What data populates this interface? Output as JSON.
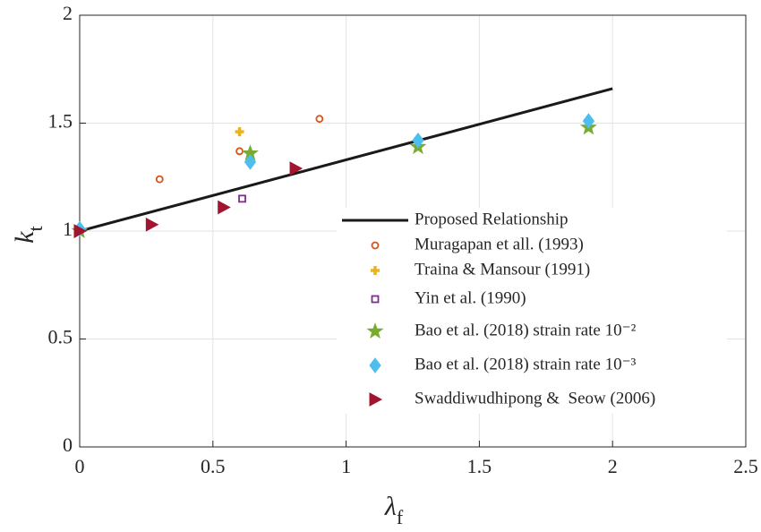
{
  "chart_data": {
    "type": "scatter",
    "xlabel": {
      "text": "λ",
      "sub": "f"
    },
    "ylabel": {
      "text": "k",
      "sub": "t"
    },
    "xlim": [
      0,
      2.5
    ],
    "ylim": [
      0,
      2
    ],
    "xticks": [
      0,
      0.5,
      1,
      1.5,
      2,
      2.5
    ],
    "yticks": [
      0,
      0.5,
      1,
      1.5,
      2
    ],
    "grid": true,
    "series": [
      {
        "name": "Proposed Relationship",
        "marker": "line",
        "color": "#1a1a1a",
        "x": [
          0,
          2
        ],
        "y": [
          1,
          1.66
        ]
      },
      {
        "name": "Muragapan et all. (1993)",
        "marker": "circle",
        "color": "#d95319",
        "x": [
          0,
          0.3,
          0.6,
          0.9
        ],
        "y": [
          1,
          1.24,
          1.37,
          1.52
        ]
      },
      {
        "name": "Traina & Mansour (1991)",
        "marker": "plus",
        "color": "#edb120",
        "x": [
          0,
          0.6
        ],
        "y": [
          1,
          1.46
        ]
      },
      {
        "name": "Yin et al. (1990)",
        "marker": "square",
        "color": "#7e2f8e",
        "x": [
          0,
          0.61
        ],
        "y": [
          1,
          1.15
        ]
      },
      {
        "name": "Bao et al. (2018) strain rate 10⁻²",
        "marker": "star",
        "color": "#77ac30",
        "x": [
          0,
          0.64,
          1.27,
          1.91
        ],
        "y": [
          1,
          1.36,
          1.39,
          1.48
        ]
      },
      {
        "name": "Bao et al. (2018) strain rate 10⁻³",
        "marker": "diamond",
        "color": "#4dbeee",
        "x": [
          0,
          0.64,
          1.27,
          1.91
        ],
        "y": [
          1.01,
          1.32,
          1.42,
          1.51
        ]
      },
      {
        "name": "Swaddiwudhipong &  Seow (2006)",
        "marker": "triangle",
        "color": "#a2142f",
        "x": [
          0,
          0.27,
          0.54,
          0.81
        ],
        "y": [
          1,
          1.03,
          1.11,
          1.29
        ]
      }
    ]
  }
}
